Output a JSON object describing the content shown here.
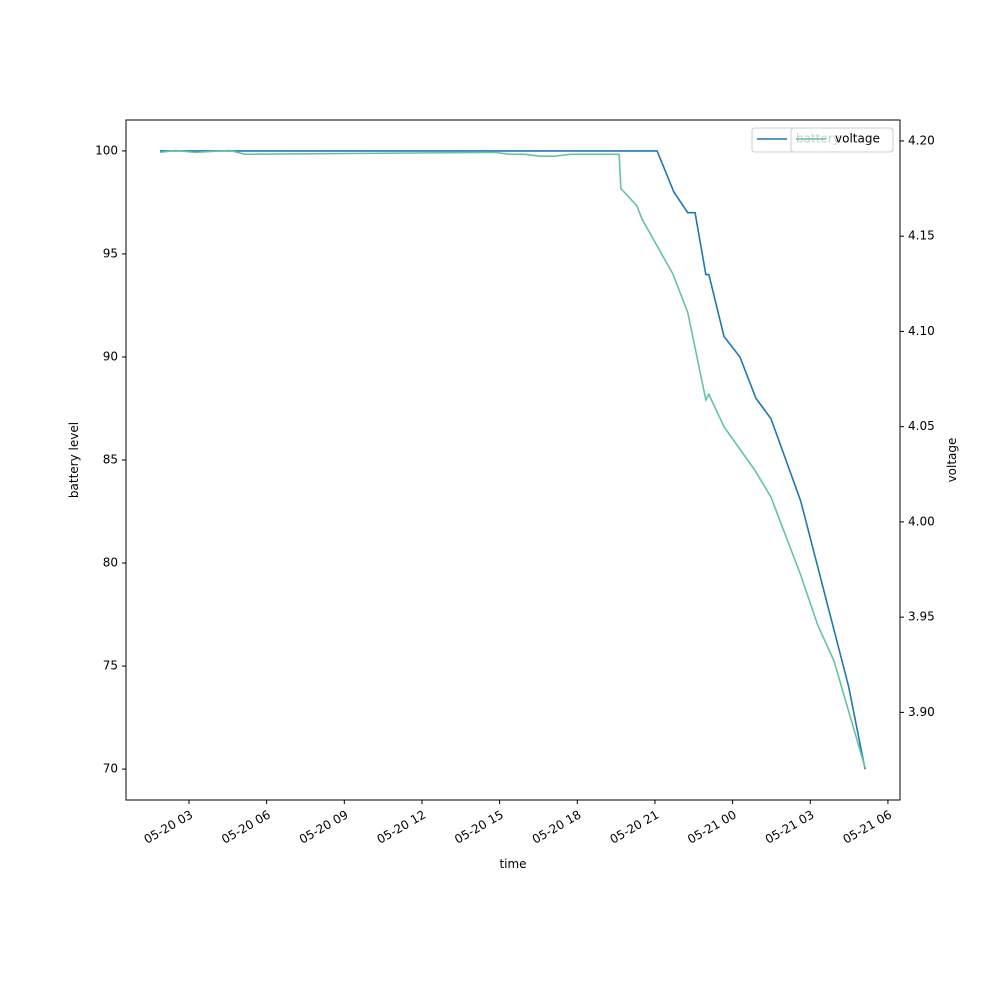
{
  "chart_data": {
    "type": "line",
    "xlabel": "time",
    "ylabel": "battery level",
    "y2label": "voltage",
    "legend": "upper right",
    "xlim": [
      "05-20 00:34",
      "05-21 06:28"
    ],
    "xticks": [
      "05-20 03",
      "05-20 06",
      "05-20 09",
      "05-20 12",
      "05-20 15",
      "05-20 18",
      "05-20 21",
      "05-21 00",
      "05-21 03",
      "05-21 06"
    ],
    "ylim": [
      68.5,
      101.5
    ],
    "yticks": [
      70,
      75,
      80,
      85,
      90,
      95,
      100
    ],
    "y2lim": [
      3.854,
      4.211
    ],
    "y2ticks": [
      {
        "value": 3.9,
        "label": "3.90"
      },
      3.95,
      {
        "value": 4.0,
        "label": "4.00"
      },
      4.05,
      {
        "value": 4.1,
        "label": "4.10"
      },
      4.15,
      {
        "value": 4.2,
        "label": "4.20"
      }
    ],
    "series": [
      {
        "name": "battery",
        "color": "#1f77b4",
        "axis": "y",
        "x": [
          "05-20 01:53",
          "05-20 21:05",
          "05-20 21:44",
          "05-20 22:16",
          "05-20 22:33",
          "05-20 22:58",
          "05-20 23:05",
          "05-20 23:40",
          "05-21 00:17",
          "05-21 00:54",
          "05-21 01:29",
          "05-21 02:38",
          "05-21 04:29",
          "05-21 05:07"
        ],
        "values": [
          100,
          100,
          98,
          97,
          97,
          94,
          94,
          91,
          90,
          88,
          87,
          83,
          74,
          70
        ]
      },
      {
        "name": "voltage",
        "color": "#66c2a5",
        "axis": "y2",
        "x": [
          "05-20 01:53",
          "05-20 02:28",
          "05-20 03:14",
          "05-20 04:35",
          "05-20 05:10",
          "05-20 14:49",
          "05-20 15:24",
          "05-20 15:59",
          "05-20 16:33",
          "05-20 17:08",
          "05-20 17:43",
          "05-20 19:37",
          "05-20 19:41",
          "05-20 20:18",
          "05-20 20:30",
          "05-20 21:42",
          "05-20 22:16",
          "05-20 22:58",
          "05-20 23:05",
          "05-20 23:40",
          "05-21 00:52",
          "05-21 01:29",
          "05-21 02:38",
          "05-21 03:17",
          "05-21 03:55",
          "05-21 05:07"
        ],
        "values": [
          4.194,
          4.195,
          4.194,
          4.195,
          4.193,
          4.194,
          4.193,
          4.193,
          4.192,
          4.192,
          4.193,
          4.193,
          4.175,
          4.166,
          4.159,
          4.13,
          4.11,
          4.064,
          4.067,
          4.05,
          4.027,
          4.013,
          3.972,
          3.946,
          3.927,
          3.871
        ]
      }
    ]
  }
}
